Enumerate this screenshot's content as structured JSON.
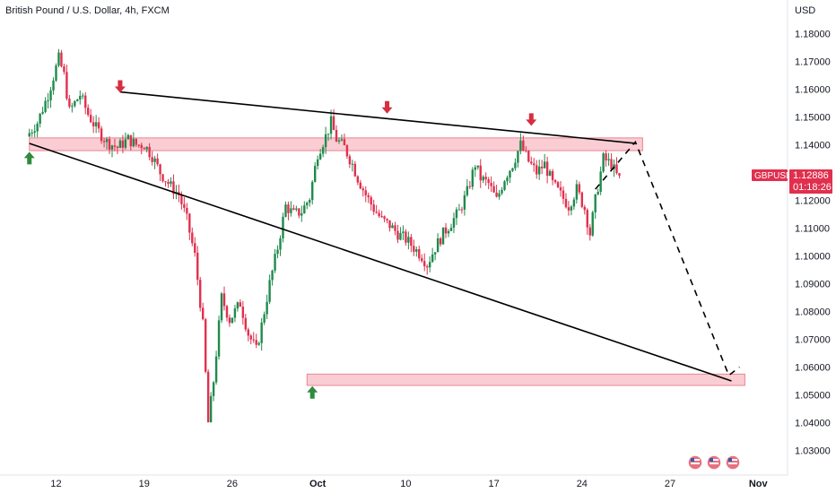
{
  "header": {
    "symbol_title": "British Pound / U.S. Dollar, 4h, FXCM",
    "currency": "USD"
  },
  "price_badge": {
    "symbol": "GBPUSD",
    "price": "1.12886",
    "countdown": "01:18:26",
    "color": "#e0304e"
  },
  "colors": {
    "up": "#1f8a4c",
    "down": "#e0304e",
    "zone_fill": "#f9c5cc",
    "zone_stroke": "#e8707f",
    "trendline": "#000000",
    "arrow_down": "#d62e40",
    "arrow_up": "#2e8b3e"
  },
  "chart_data": {
    "type": "candlestick",
    "symbol": "GBPUSD",
    "timeframe": "4h",
    "ylim": [
      1.025,
      1.185
    ],
    "yticks": [
      "1.18000",
      "1.17000",
      "1.16000",
      "1.15000",
      "1.14000",
      "1.13000",
      "1.12000",
      "1.11000",
      "1.10000",
      "1.09000",
      "1.08000",
      "1.07000",
      "1.06000",
      "1.05000",
      "1.04000",
      "1.03000"
    ],
    "xticks": [
      "12",
      "19",
      "26",
      "Oct",
      "10",
      "17",
      "24",
      "27",
      "Nov"
    ],
    "xtick_index": [
      10,
      43,
      76,
      108,
      141,
      174,
      207,
      240,
      273
    ],
    "x_domain": [
      -11,
      284
    ],
    "ohlc_points": [
      [
        0,
        1.143
      ],
      [
        4,
        1.148
      ],
      [
        8,
        1.158
      ],
      [
        12,
        1.171
      ],
      [
        14,
        1.165
      ],
      [
        16,
        1.152
      ],
      [
        20,
        1.158
      ],
      [
        23,
        1.151
      ],
      [
        26,
        1.146
      ],
      [
        30,
        1.141
      ],
      [
        34,
        1.139
      ],
      [
        38,
        1.142
      ],
      [
        41,
        1.14
      ],
      [
        44,
        1.14
      ],
      [
        47,
        1.136
      ],
      [
        50,
        1.13
      ],
      [
        54,
        1.125
      ],
      [
        57,
        1.122
      ],
      [
        60,
        1.113
      ],
      [
        63,
        1.1
      ],
      [
        66,
        1.075
      ],
      [
        68,
        1.04
      ],
      [
        70,
        1.055
      ],
      [
        73,
        1.085
      ],
      [
        76,
        1.077
      ],
      [
        80,
        1.083
      ],
      [
        83,
        1.072
      ],
      [
        86,
        1.066
      ],
      [
        88,
        1.075
      ],
      [
        91,
        1.09
      ],
      [
        94,
        1.103
      ],
      [
        97,
        1.118
      ],
      [
        100,
        1.115
      ],
      [
        103,
        1.116
      ],
      [
        106,
        1.121
      ],
      [
        109,
        1.137
      ],
      [
        112,
        1.143
      ],
      [
        114,
        1.148
      ],
      [
        116,
        1.142
      ],
      [
        119,
        1.139
      ],
      [
        122,
        1.133
      ],
      [
        124,
        1.128
      ],
      [
        127,
        1.122
      ],
      [
        130,
        1.117
      ],
      [
        133,
        1.113
      ],
      [
        136,
        1.111
      ],
      [
        139,
        1.108
      ],
      [
        142,
        1.106
      ],
      [
        145,
        1.103
      ],
      [
        148,
        1.1
      ],
      [
        150,
        1.097
      ],
      [
        153,
        1.103
      ],
      [
        156,
        1.108
      ],
      [
        159,
        1.112
      ],
      [
        162,
        1.116
      ],
      [
        165,
        1.123
      ],
      [
        168,
        1.133
      ],
      [
        170,
        1.128
      ],
      [
        173,
        1.126
      ],
      [
        176,
        1.12
      ],
      [
        179,
        1.128
      ],
      [
        182,
        1.133
      ],
      [
        185,
        1.14
      ],
      [
        188,
        1.134
      ],
      [
        191,
        1.13
      ],
      [
        194,
        1.133
      ],
      [
        197,
        1.126
      ],
      [
        200,
        1.122
      ],
      [
        203,
        1.118
      ],
      [
        206,
        1.124
      ],
      [
        209,
        1.117
      ],
      [
        211,
        1.108
      ],
      [
        213,
        1.12
      ],
      [
        216,
        1.135
      ],
      [
        219,
        1.133
      ],
      [
        221,
        1.129
      ]
    ],
    "current_price": 1.12886,
    "resistance_zone": {
      "low": 1.1395,
      "high": 1.1415
    },
    "support_zone": {
      "low": 1.055,
      "high": 1.0565
    },
    "trendlines": [
      {
        "from": [
          34,
          1.159
        ],
        "to": [
          227,
          1.1405
        ]
      },
      {
        "from": [
          0,
          1.1405
        ],
        "to": [
          263,
          1.055
        ]
      }
    ],
    "projection_path": [
      [
        212,
        1.124
      ],
      [
        227,
        1.141
      ],
      [
        262,
        1.057
      ],
      [
        266,
        1.06
      ]
    ],
    "markers_down": [
      [
        34,
        1.1613
      ],
      [
        134,
        1.1538
      ],
      [
        188,
        1.1494
      ]
    ],
    "markers_up": [
      [
        0,
        1.1368
      ],
      [
        106,
        1.0525
      ]
    ],
    "event_icons": 3
  }
}
